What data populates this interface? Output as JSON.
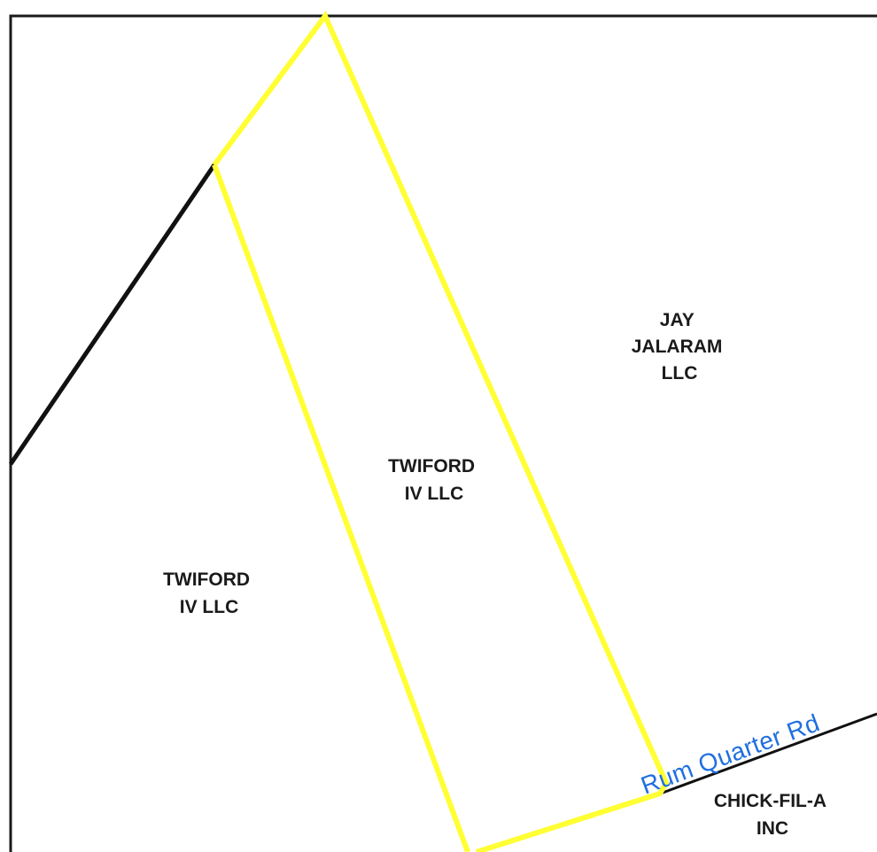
{
  "map": {
    "parcels": [
      {
        "id": "twiford-west",
        "owner_lines": [
          "TWIFORD",
          "IV LLC"
        ]
      },
      {
        "id": "twiford-subject",
        "owner_lines": [
          "TWIFORD",
          "IV LLC"
        ],
        "highlighted": true
      },
      {
        "id": "jay-jalaram",
        "owner_lines": [
          "JAY",
          "JALARAM",
          "LLC"
        ]
      },
      {
        "id": "chick-fil-a",
        "owner_lines": [
          "CHICK-FIL-A",
          "INC"
        ]
      }
    ],
    "road": {
      "name": "Rum Quarter Rd"
    },
    "colors": {
      "background": "#ffffff",
      "frame": "#1a1a1a",
      "parcel_line": "#111111",
      "highlight": "#ffff33",
      "road_label": "#1f6fe0",
      "owner_label": "#1a1a1a"
    }
  }
}
